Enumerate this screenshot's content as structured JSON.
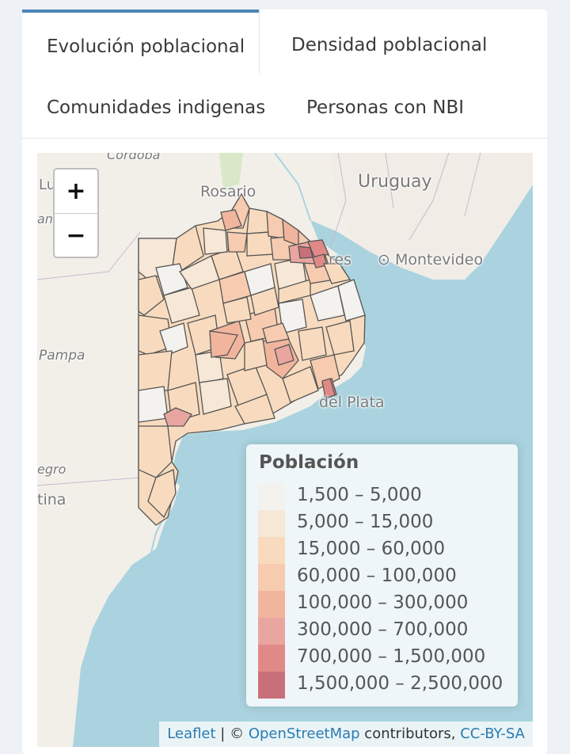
{
  "tabs": [
    {
      "label": "Evolución poblacional",
      "active": true
    },
    {
      "label": "Densidad poblacional",
      "active": false
    },
    {
      "label": "Comunidades indigenas",
      "active": false
    },
    {
      "label": "Personas con NBI",
      "active": false
    }
  ],
  "map": {
    "zoom_in_label": "+",
    "zoom_out_label": "−",
    "place_labels": {
      "cordoba": "Cordoba",
      "rosario": "Rosario",
      "uruguay": "Uruguay",
      "montevideo": "Montevideo",
      "buenos_aires_fragment": "res",
      "pampa": "Pampa",
      "mar_del_plata": "del Plata",
      "negro": "egro",
      "argentina": "tina",
      "lu_fragment": "Lu",
      "an_fragment": "an"
    },
    "colors": {
      "water": "#aad3df",
      "land": "#f2efe9",
      "border": "#444444"
    }
  },
  "legend": {
    "title": "Población",
    "items": [
      {
        "label": "1,500 – 5,000",
        "color": "#f4f2ee"
      },
      {
        "label": "5,000 – 15,000",
        "color": "#f6e7d6"
      },
      {
        "label": "15,000 – 60,000",
        "color": "#f8dbbe"
      },
      {
        "label": "60,000 – 100,000",
        "color": "#f6cbb0"
      },
      {
        "label": "100,000 – 300,000",
        "color": "#f1b59d"
      },
      {
        "label": "300,000 – 700,000",
        "color": "#e9a5a0"
      },
      {
        "label": "700,000 – 1,500,000",
        "color": "#e08a87"
      },
      {
        "label": "1,500,000 – 2,500,000",
        "color": "#c8707a"
      }
    ]
  },
  "attribution": {
    "leaflet": "Leaflet",
    "sep": " | © ",
    "osm": "OpenStreetMap",
    "contrib": " contributors, ",
    "license": "CC-BY-SA"
  }
}
